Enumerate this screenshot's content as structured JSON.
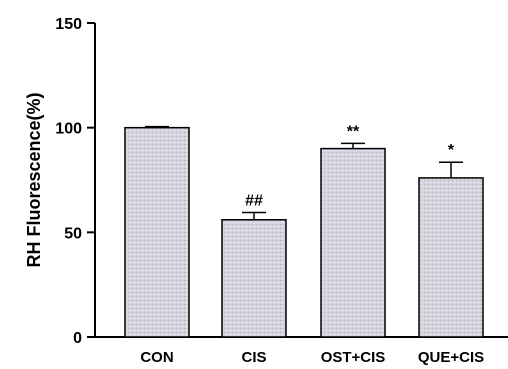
{
  "chart_data": {
    "type": "bar",
    "categories": [
      "CON",
      "CIS",
      "OST+CIS",
      "QUE+CIS"
    ],
    "values": [
      100,
      56,
      90,
      76
    ],
    "errors": [
      0.5,
      3.5,
      2.5,
      7.5
    ],
    "annotations": [
      "",
      "##",
      "**",
      "*"
    ],
    "title": "",
    "xlabel": "",
    "ylabel": "RH Fluorescence(%)",
    "ylim": [
      0,
      150
    ],
    "yticks": [
      0,
      50,
      100,
      150
    ],
    "grid": false,
    "colors": {
      "bar_fill": "#d2d3df",
      "bar_stroke": "#000000",
      "axis": "#000000"
    }
  }
}
